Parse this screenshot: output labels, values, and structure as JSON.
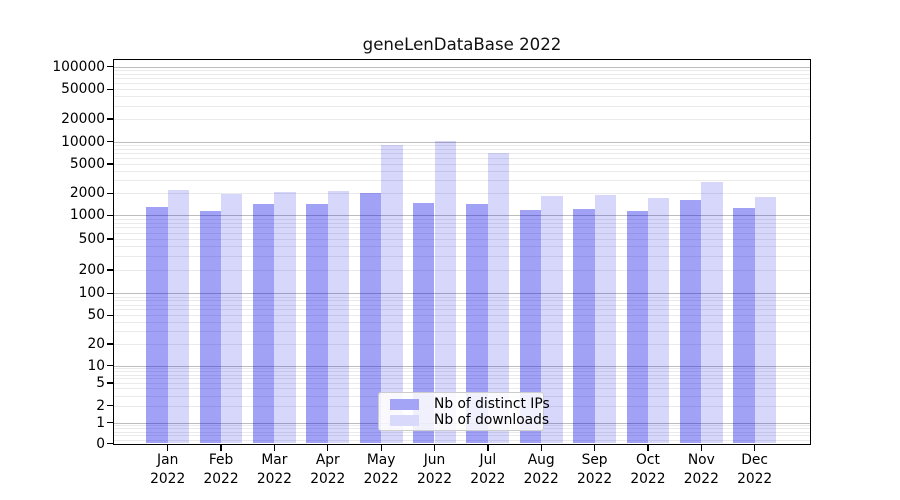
{
  "chart_data": {
    "type": "bar",
    "title": "geneLenDataBase 2022",
    "categories": [
      "Jan",
      "Feb",
      "Mar",
      "Apr",
      "May",
      "Jun",
      "Jul",
      "Aug",
      "Sep",
      "Oct",
      "Nov",
      "Dec"
    ],
    "category_year": "2022",
    "series": [
      {
        "name": "Nb of distinct IPs",
        "values": [
          1280,
          1150,
          1430,
          1420,
          2030,
          1490,
          1420,
          1180,
          1230,
          1130,
          1600,
          1240
        ],
        "bar_color": "rgba(0,0,230,0.37)",
        "legend_color": "#a4a4f6"
      },
      {
        "name": "Nb of downloads",
        "values": [
          2200,
          1950,
          2100,
          2150,
          9000,
          10100,
          7050,
          1800,
          1900,
          1730,
          2840,
          1790
        ],
        "bar_color": "rgba(0,0,230,0.155)",
        "legend_color": "#d9d9fb"
      }
    ],
    "y_axis": {
      "scale": "log-like (symlog), 0 at baseline",
      "tick_labels": [
        "100000",
        "50000",
        "20000",
        "10000",
        "5000",
        "2000",
        "1000",
        "500",
        "200",
        "100",
        "50",
        "20",
        "10",
        "5",
        "2",
        "1",
        "0"
      ],
      "tick_values": [
        100000,
        50000,
        20000,
        10000,
        5000,
        2000,
        1000,
        500,
        200,
        100,
        50,
        20,
        10,
        5,
        2,
        1,
        0
      ],
      "ylim": [
        0,
        130000
      ]
    },
    "x_axis": {
      "label_line2": "2022"
    },
    "grid": true,
    "legend_position": "lower center"
  }
}
